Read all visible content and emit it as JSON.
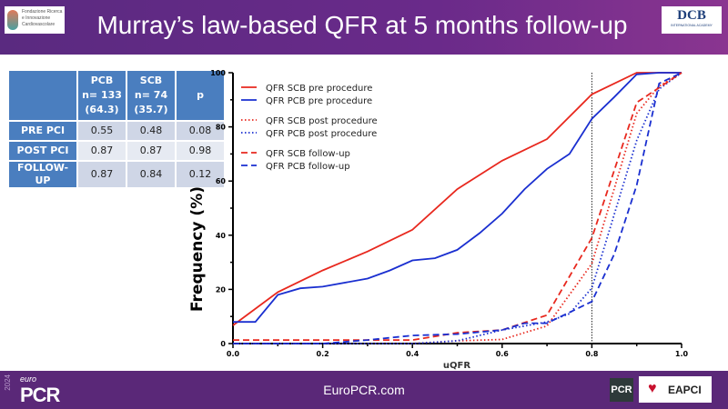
{
  "header": {
    "title": "Murray’s law-based QFR at 5 months follow-up",
    "logo_left": "Fondazione Ricerca e Innovazione Cardiovascolare",
    "logo_right": "DCB",
    "logo_right_sub": "INTERNATIONAL ACADEMY"
  },
  "table": {
    "headers": [
      [
        "PCB",
        "n= 133",
        "(64.3)"
      ],
      [
        "SCB",
        "n= 74",
        "(35.7)"
      ],
      [
        "p"
      ]
    ],
    "rows": [
      {
        "label": "PRE PCI",
        "values": [
          "0.55",
          "0.48",
          "0.08"
        ]
      },
      {
        "label": "POST PCI",
        "values": [
          "0.87",
          "0.87",
          "0.98"
        ]
      },
      {
        "label": "FOLLOW-UP",
        "values": [
          "0.87",
          "0.84",
          "0.12"
        ]
      }
    ]
  },
  "chart_data": {
    "type": "line",
    "xlabel": "uQFR",
    "ylabel": "Frequency (%)",
    "xlim": [
      0,
      1
    ],
    "ylim": [
      0,
      100
    ],
    "xticks": [
      "0.0",
      "0.2",
      "0.4",
      "0.6",
      "0.8",
      "1.0"
    ],
    "yticks": [
      "0",
      "20",
      "40",
      "60",
      "80",
      "100"
    ],
    "reference_line_x": 0.8,
    "legend_position": "top-left",
    "series": [
      {
        "name": "QFR SCB pre procedure",
        "color": "#e8281e",
        "style": "solid",
        "x": [
          0,
          0.1,
          0.2,
          0.3,
          0.4,
          0.5,
          0.6,
          0.7,
          0.8,
          0.9,
          1.0
        ],
        "y": [
          6.7,
          19,
          27,
          34,
          42,
          57,
          67.5,
          75.5,
          92,
          100,
          100
        ]
      },
      {
        "name": "QFR PCB pre procedure",
        "color": "#1a2fd0",
        "style": "solid",
        "x": [
          0,
          0.05,
          0.1,
          0.15,
          0.2,
          0.3,
          0.35,
          0.4,
          0.45,
          0.5,
          0.55,
          0.6,
          0.65,
          0.7,
          0.75,
          0.8,
          0.85,
          0.9,
          0.95,
          1.0
        ],
        "y": [
          8,
          8,
          18,
          20.4,
          21,
          24,
          27,
          30.7,
          31.5,
          34.6,
          40.8,
          48,
          57,
          64.5,
          70,
          83,
          91,
          99.4,
          100,
          100
        ]
      },
      {
        "name": "QFR SCB post procedure",
        "color": "#e8281e",
        "style": "dotted",
        "x": [
          0,
          0.4,
          0.5,
          0.6,
          0.7,
          0.8,
          0.9,
          0.95,
          1.0
        ],
        "y": [
          0,
          0,
          1,
          1.5,
          6.5,
          29.5,
          85,
          95,
          100
        ]
      },
      {
        "name": "QFR PCB post procedure",
        "color": "#1a2fd0",
        "style": "dotted",
        "x": [
          0,
          0.4,
          0.5,
          0.6,
          0.7,
          0.75,
          0.8,
          0.9,
          0.95,
          1.0
        ],
        "y": [
          0,
          0,
          1,
          5,
          8,
          11,
          20.5,
          75,
          94,
          100
        ]
      },
      {
        "name": "QFR SCB follow-up",
        "color": "#e8281e",
        "style": "dashed",
        "x": [
          0,
          0.4,
          0.5,
          0.6,
          0.7,
          0.8,
          0.9,
          1.0
        ],
        "y": [
          1.3,
          1.3,
          4,
          5,
          10.5,
          39,
          89,
          100
        ]
      },
      {
        "name": "QFR PCB follow-up",
        "color": "#1a2fd0",
        "style": "dashed",
        "x": [
          0,
          0.2,
          0.3,
          0.4,
          0.5,
          0.6,
          0.65,
          0.7,
          0.8,
          0.85,
          0.9,
          0.95,
          1.0
        ],
        "y": [
          0,
          0,
          1.3,
          3,
          3.5,
          5,
          7.5,
          7.5,
          15.5,
          33,
          58.5,
          96,
          100
        ]
      }
    ]
  },
  "footer": {
    "year": "2024",
    "euro": "euro",
    "brand": "PCR",
    "site": "EuroPCR.com",
    "pcr_badge": "PCR",
    "eapci": "EAPCI"
  }
}
